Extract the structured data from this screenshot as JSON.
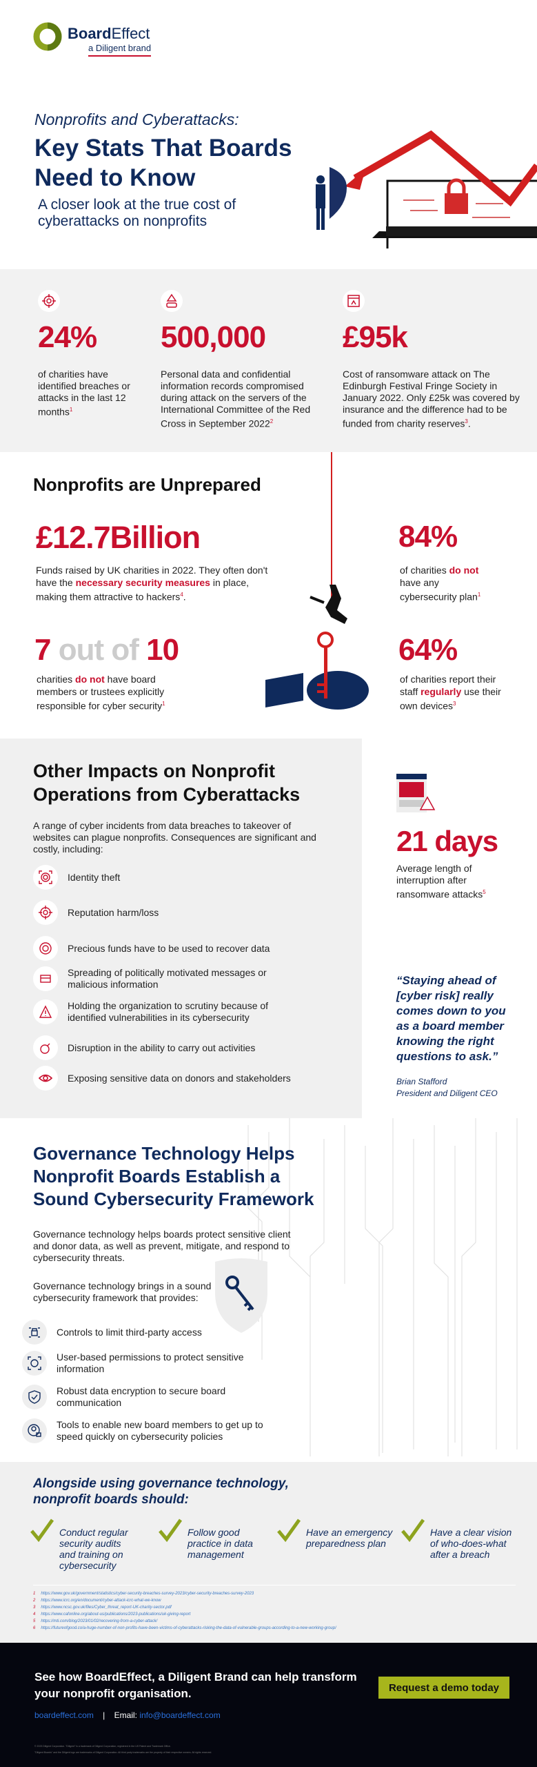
{
  "brand": {
    "name_bold": "Board",
    "name_light": "Effect",
    "tagline": "a Diligent brand",
    "colors": {
      "red": "#c8102e",
      "navy": "#0f2a5c",
      "green": "#a7b51c",
      "dark": "#05060f"
    }
  },
  "hero": {
    "kicker": "Nonprofits and Cyberattacks:",
    "title_line1": "Key Stats That Boards",
    "title_line2": "Need to Know",
    "subtitle_line1": "A closer look at the true cost of",
    "subtitle_line2": "cyberattacks on nonprofits"
  },
  "stats": [
    {
      "icon": "target-icon",
      "value": "24%",
      "text": "of charities have identified breaches or attacks in the last 12 months",
      "ref": "1"
    },
    {
      "icon": "warning-password-icon",
      "value": "500,000",
      "text": "Personal data and confidential information records compromised during attack on the servers of the International Committee of the Red Cross in September 2022",
      "ref": "2"
    },
    {
      "icon": "ransomware-icon",
      "value": "£95k",
      "text": "Cost of ransomware attack on The Edinburgh Festival Fringe Society in January 2022. Only £25k was covered by insurance and the difference had to be funded from charity reserves",
      "ref": "3",
      "tail": "."
    }
  ],
  "unprepared": {
    "heading": "Nonprofits are Unprepared",
    "funds": {
      "value": "£12.7Billion",
      "pre": "Funds raised by UK charities in 2022. They often don't have the ",
      "highlight": "necessary security measures",
      "post": " in place, making them attractive to hackers",
      "ref": "4",
      "tail": "."
    },
    "boards": {
      "v1": "7",
      "mid": " out of ",
      "v2": "10",
      "pre": "charities ",
      "highlight": "do not",
      "post": " have board members or trustees explicitly responsible for cyber security",
      "ref": "1"
    },
    "plan": {
      "value": "84%",
      "pre": "of charities ",
      "highlight": "do not",
      "post": " have any cybersecurity plan",
      "ref": "1"
    },
    "devices": {
      "value": "64%",
      "pre": "of charities report their staff ",
      "highlight": "regularly",
      "post": " use their own devices",
      "ref": "3"
    }
  },
  "impacts": {
    "heading_line1": "Other Impacts on Nonprofit",
    "heading_line2": "Operations from Cyberattacks",
    "intro": "A range of cyber incidents from data breaches to takeover of websites can plague nonprofits. Consequences are significant and costly, including:",
    "items": [
      {
        "icon": "fingerprint-icon",
        "text": "Identity theft"
      },
      {
        "icon": "target-icon",
        "text": "Reputation harm/loss"
      },
      {
        "icon": "money-recover-icon",
        "text": "Precious funds have to be used to recover data"
      },
      {
        "icon": "message-alert-icon",
        "text": "Spreading of politically motivated messages or malicious information"
      },
      {
        "icon": "warning-icon",
        "text": "Holding the organization to scrutiny because of identified vulnerabilities in its cybersecurity"
      },
      {
        "icon": "bomb-icon",
        "text": "Disruption in the ability to carry out activities"
      },
      {
        "icon": "eye-icon",
        "text": "Exposing sensitive data on donors and stakeholders"
      }
    ],
    "days": {
      "value": "21 days",
      "text": "Average length of interruption after ransomware attacks",
      "ref": "5"
    },
    "quote": {
      "text": "“Staying ahead of [cyber risk] really comes down to you as a board member knowing the right questions to ask.”",
      "author": "Brian Stafford",
      "role": "President and Diligent CEO"
    }
  },
  "governance": {
    "heading_line1": "Governance Technology Helps",
    "heading_line2": "Nonprofit Boards Establish a",
    "heading_line3": "Sound Cybersecurity Framework",
    "para1": "Governance technology helps boards protect sensitive client and donor data, as well as prevent, mitigate, and respond to cybersecurity threats.",
    "para2": "Governance technology brings in a sound cybersecurity framework that provides:",
    "items": [
      {
        "icon": "network-lock-icon",
        "text": "Controls to limit third-party access"
      },
      {
        "icon": "face-scan-icon",
        "text": "User-based permissions to protect sensitive information"
      },
      {
        "icon": "shield-check-icon",
        "text": "Robust data encryption to secure board communication"
      },
      {
        "icon": "user-lock-icon",
        "text": "Tools to enable new board members to get up to speed quickly on cybersecurity policies"
      }
    ]
  },
  "alongside": {
    "heading_line1": "Alongside using governance technology,",
    "heading_line2": "nonprofit boards should:",
    "items": [
      "Conduct regular security audits and training on cybersecurity",
      "Follow good practice in data management",
      "Have an emergency preparedness plan",
      "Have a clear vision of who-does-what after a breach"
    ]
  },
  "footnotes": [
    {
      "n": "1",
      "url": "https://www.gov.uk/government/statistics/cyber-security-breaches-survey-2023/cyber-security-breaches-survey-2023"
    },
    {
      "n": "2",
      "url": "https://www.icrc.org/en/document/cyber-attack-icrc-what-we-know"
    },
    {
      "n": "3",
      "url": "https://www.ncsc.gov.uk/files/Cyber_threat_report-UK-charity-sector.pdf"
    },
    {
      "n": "4",
      "url": "https://www.cafonline.org/about-us/publications/2023-publications/uk-giving-report"
    },
    {
      "n": "5",
      "url": "https://mti.com/blog/2023/01/02/recovering-from-a-cyber-attack/"
    },
    {
      "n": "6",
      "url": "https://futureofgood.co/a-huge-number-of-non-profits-have-been-victims-of-cyberattacks-risking-the-data-of-vulnerable-groups-according-to-a-new-working-group/"
    }
  ],
  "footer": {
    "cta_line1": "See how BoardEffect, a Diligent Brand can help transform",
    "cta_line2": "your nonprofit organisation.",
    "site": "boardeffect.com",
    "sep": "|",
    "email_label": "Email:",
    "email": "info@boardeffect.com",
    "button": "Request a demo today",
    "legal1": "© 2023 Diligent Corporation. \"Diligent\" is a trademark of Diligent Corporation, registered in the US Patent and Trademark Office.",
    "legal2": "\"Diligent Boards\" and the Diligent logo are trademarks of Diligent Corporation. All third party trademarks are the property of their respective owners. All rights reserved."
  }
}
